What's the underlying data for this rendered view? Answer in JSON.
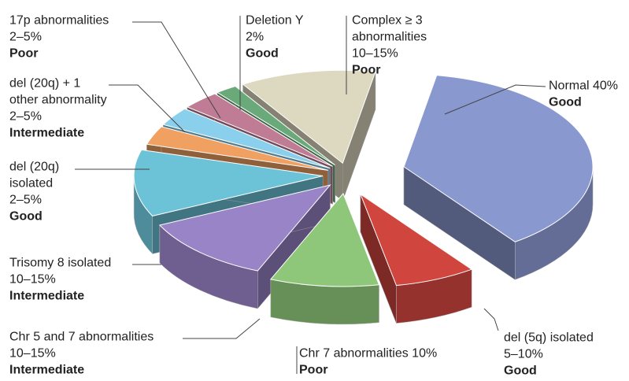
{
  "chart_data": {
    "type": "pie",
    "labels": [
      [
        "Normal 40%"
      ],
      [
        "del (5q) isolated",
        "5–10%"
      ],
      [
        "Chr 7 abnormalities 10%"
      ],
      [
        "Chr 5 and 7 abnormalities",
        "10–15%"
      ],
      [
        "Trisomy 8 isolated",
        "10–15%"
      ],
      [
        "del (20q)",
        "isolated",
        "2–5%"
      ],
      [
        "del (20q) + 1",
        "other abnormality",
        "2–5%"
      ],
      [
        "17p abnormalities",
        "2–5%"
      ],
      [
        "Deletion Y",
        "2%"
      ],
      [
        "Complex ≥ 3",
        "abnormalities",
        "10–15%"
      ]
    ],
    "risk": [
      "Good",
      "Good",
      "Poor",
      "Intermediate",
      "Intermediate",
      "Good",
      "Intermediate",
      "Poor",
      "Good",
      "Poor"
    ],
    "values": [
      40,
      7.5,
      10,
      12.5,
      12.5,
      3.5,
      3.5,
      3.5,
      2,
      12.5
    ],
    "colors": [
      "#8a98d0",
      "#d0463f",
      "#8fc77a",
      "#9a84c8",
      "#6cc3d8",
      "#f0a060",
      "#8ad0ec",
      "#c07c94",
      "#6aaa7a",
      "#ddd8c0"
    ]
  }
}
